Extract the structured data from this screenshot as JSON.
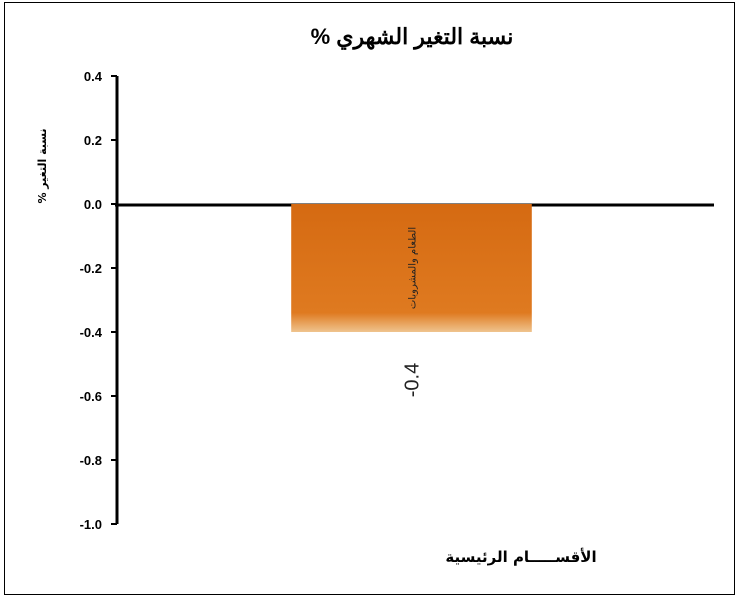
{
  "chart_data": {
    "type": "bar",
    "title": "نسبة التغير الشهري %",
    "ylabel": "نسبة التغير %",
    "xlabel": "الأقســـــام الرئيسية",
    "categories": [
      "الطعام والمشروبات"
    ],
    "values": [
      -0.4
    ],
    "data_labels": [
      "-0.4"
    ],
    "ylim": [
      -1.0,
      0.4
    ],
    "yticks": [
      "0.4",
      "0.2",
      "0.0",
      "-0.2",
      "-0.4",
      "-0.6",
      "-0.8",
      "-1.0"
    ],
    "bar_color": "#D96C14",
    "grid": false
  }
}
